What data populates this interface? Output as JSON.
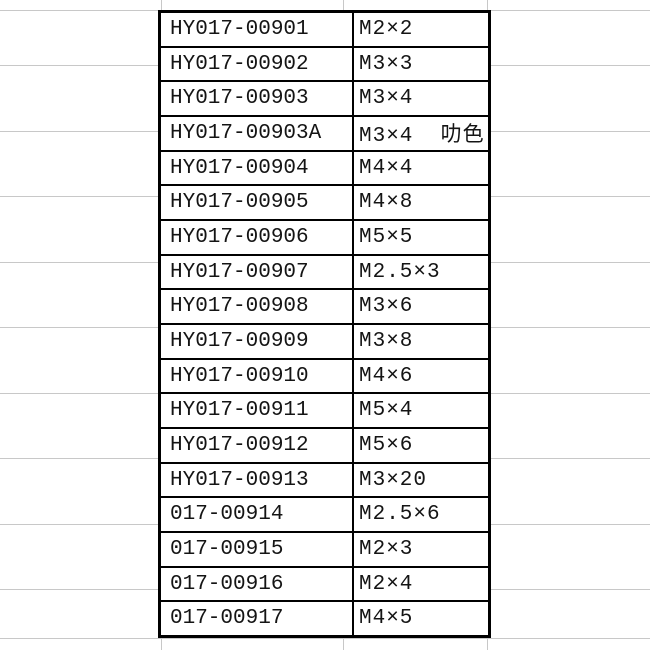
{
  "chart_data": {
    "type": "table",
    "rows": [
      [
        "HY017-00901",
        "M2×2"
      ],
      [
        "HY017-00902",
        "M3×3"
      ],
      [
        "HY017-00903",
        "M3×4"
      ],
      [
        "HY017-00903A",
        "M3×4  叻色"
      ],
      [
        "HY017-00904",
        "M4×4"
      ],
      [
        "HY017-00905",
        "M4×8"
      ],
      [
        "HY017-00906",
        "M5×5"
      ],
      [
        "HY017-00907",
        "M2.5×3"
      ],
      [
        "HY017-00908",
        "M3×6"
      ],
      [
        "HY017-00909",
        "M3×8"
      ],
      [
        "HY017-00910",
        "M4×6"
      ],
      [
        "HY017-00911",
        "M5×4"
      ],
      [
        "HY017-00912",
        "M5×6"
      ],
      [
        "HY017-00913",
        "M3×20"
      ],
      [
        "017-00914",
        "M2.5×6"
      ],
      [
        "017-00915",
        "M2×3"
      ],
      [
        "017-00916",
        "M2×4"
      ],
      [
        "017-00917",
        "M4×5"
      ]
    ],
    "layout": {
      "grid": "faint spreadsheet gridlines visible in margins",
      "header_row": false
    }
  },
  "colors": {
    "table_border": "#000000",
    "text": "#141414",
    "gridline": "#c8c8c8",
    "background": "#ffffff"
  }
}
